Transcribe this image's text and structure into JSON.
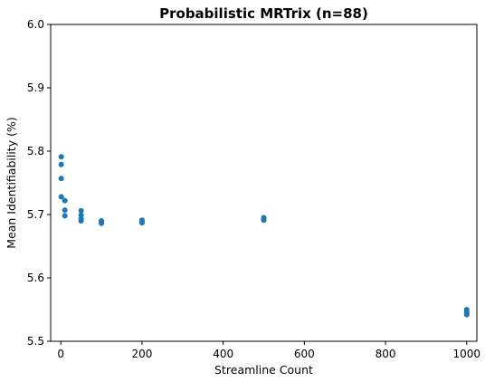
{
  "chart_data": {
    "type": "scatter",
    "title": "Probabilistic MRTrix (n=88)",
    "xlabel": "Streamline Count",
    "ylabel": "Mean Identifiability (%)",
    "xlim": [
      -25,
      1025
    ],
    "ylim": [
      5.5,
      6.0
    ],
    "xticks": [
      0,
      200,
      400,
      600,
      800,
      1000
    ],
    "yticks": [
      5.5,
      5.6,
      5.7,
      5.8,
      5.9,
      6.0
    ],
    "xtick_labels": [
      "0",
      "200",
      "400",
      "600",
      "800",
      "1000"
    ],
    "ytick_labels": [
      "5.5",
      "5.6",
      "5.7",
      "5.8",
      "5.9",
      "6.0"
    ],
    "grid": false,
    "marker_color": "#1f77b4",
    "points": [
      {
        "x": 1,
        "y": 5.791
      },
      {
        "x": 1,
        "y": 5.779
      },
      {
        "x": 1,
        "y": 5.757
      },
      {
        "x": 1,
        "y": 5.728
      },
      {
        "x": 10,
        "y": 5.722
      },
      {
        "x": 10,
        "y": 5.707
      },
      {
        "x": 10,
        "y": 5.698
      },
      {
        "x": 50,
        "y": 5.706
      },
      {
        "x": 50,
        "y": 5.699
      },
      {
        "x": 50,
        "y": 5.693
      },
      {
        "x": 50,
        "y": 5.69
      },
      {
        "x": 100,
        "y": 5.69
      },
      {
        "x": 100,
        "y": 5.688
      },
      {
        "x": 100,
        "y": 5.686
      },
      {
        "x": 200,
        "y": 5.691
      },
      {
        "x": 200,
        "y": 5.689
      },
      {
        "x": 200,
        "y": 5.687
      },
      {
        "x": 500,
        "y": 5.695
      },
      {
        "x": 500,
        "y": 5.693
      },
      {
        "x": 500,
        "y": 5.691
      },
      {
        "x": 1000,
        "y": 5.55
      },
      {
        "x": 1000,
        "y": 5.547
      },
      {
        "x": 1000,
        "y": 5.544
      },
      {
        "x": 1000,
        "y": 5.542
      }
    ]
  }
}
